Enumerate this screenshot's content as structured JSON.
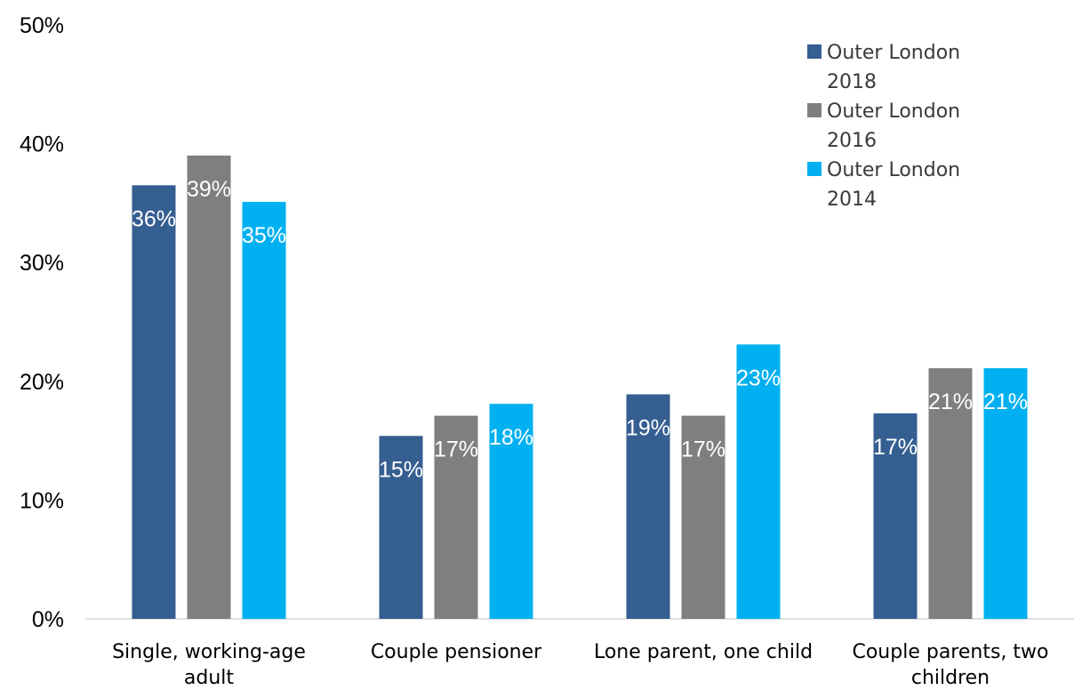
{
  "chart_data": {
    "type": "bar",
    "categories": [
      [
        "Single, working-age",
        "adult"
      ],
      [
        "Couple pensioner"
      ],
      [
        "Lone parent, one child"
      ],
      [
        "Couple parents, two",
        "children"
      ]
    ],
    "series": [
      {
        "name": [
          "Outer London",
          "2018"
        ],
        "values": [
          36.5,
          15.4,
          18.9,
          17.3
        ],
        "labels": [
          "36%",
          "15%",
          "19%",
          "17%"
        ],
        "color": "#355E91"
      },
      {
        "name": [
          "Outer London",
          "2016"
        ],
        "values": [
          39.0,
          17.1,
          17.1,
          21.1
        ],
        "labels": [
          "39%",
          "17%",
          "17%",
          "21%"
        ],
        "color": "#7F7F7F"
      },
      {
        "name": [
          "Outer London",
          "2014"
        ],
        "values": [
          35.1,
          18.1,
          23.1,
          21.1
        ],
        "labels": [
          "35%",
          "18%",
          "23%",
          "21%"
        ],
        "color": "#00B0F0"
      }
    ],
    "y_ticks": [
      "0%",
      "10%",
      "20%",
      "30%",
      "40%",
      "50%"
    ],
    "ylim": [
      0,
      50
    ],
    "grid": false,
    "legend_position": "top-right",
    "title": "",
    "xlabel": "",
    "ylabel": ""
  }
}
